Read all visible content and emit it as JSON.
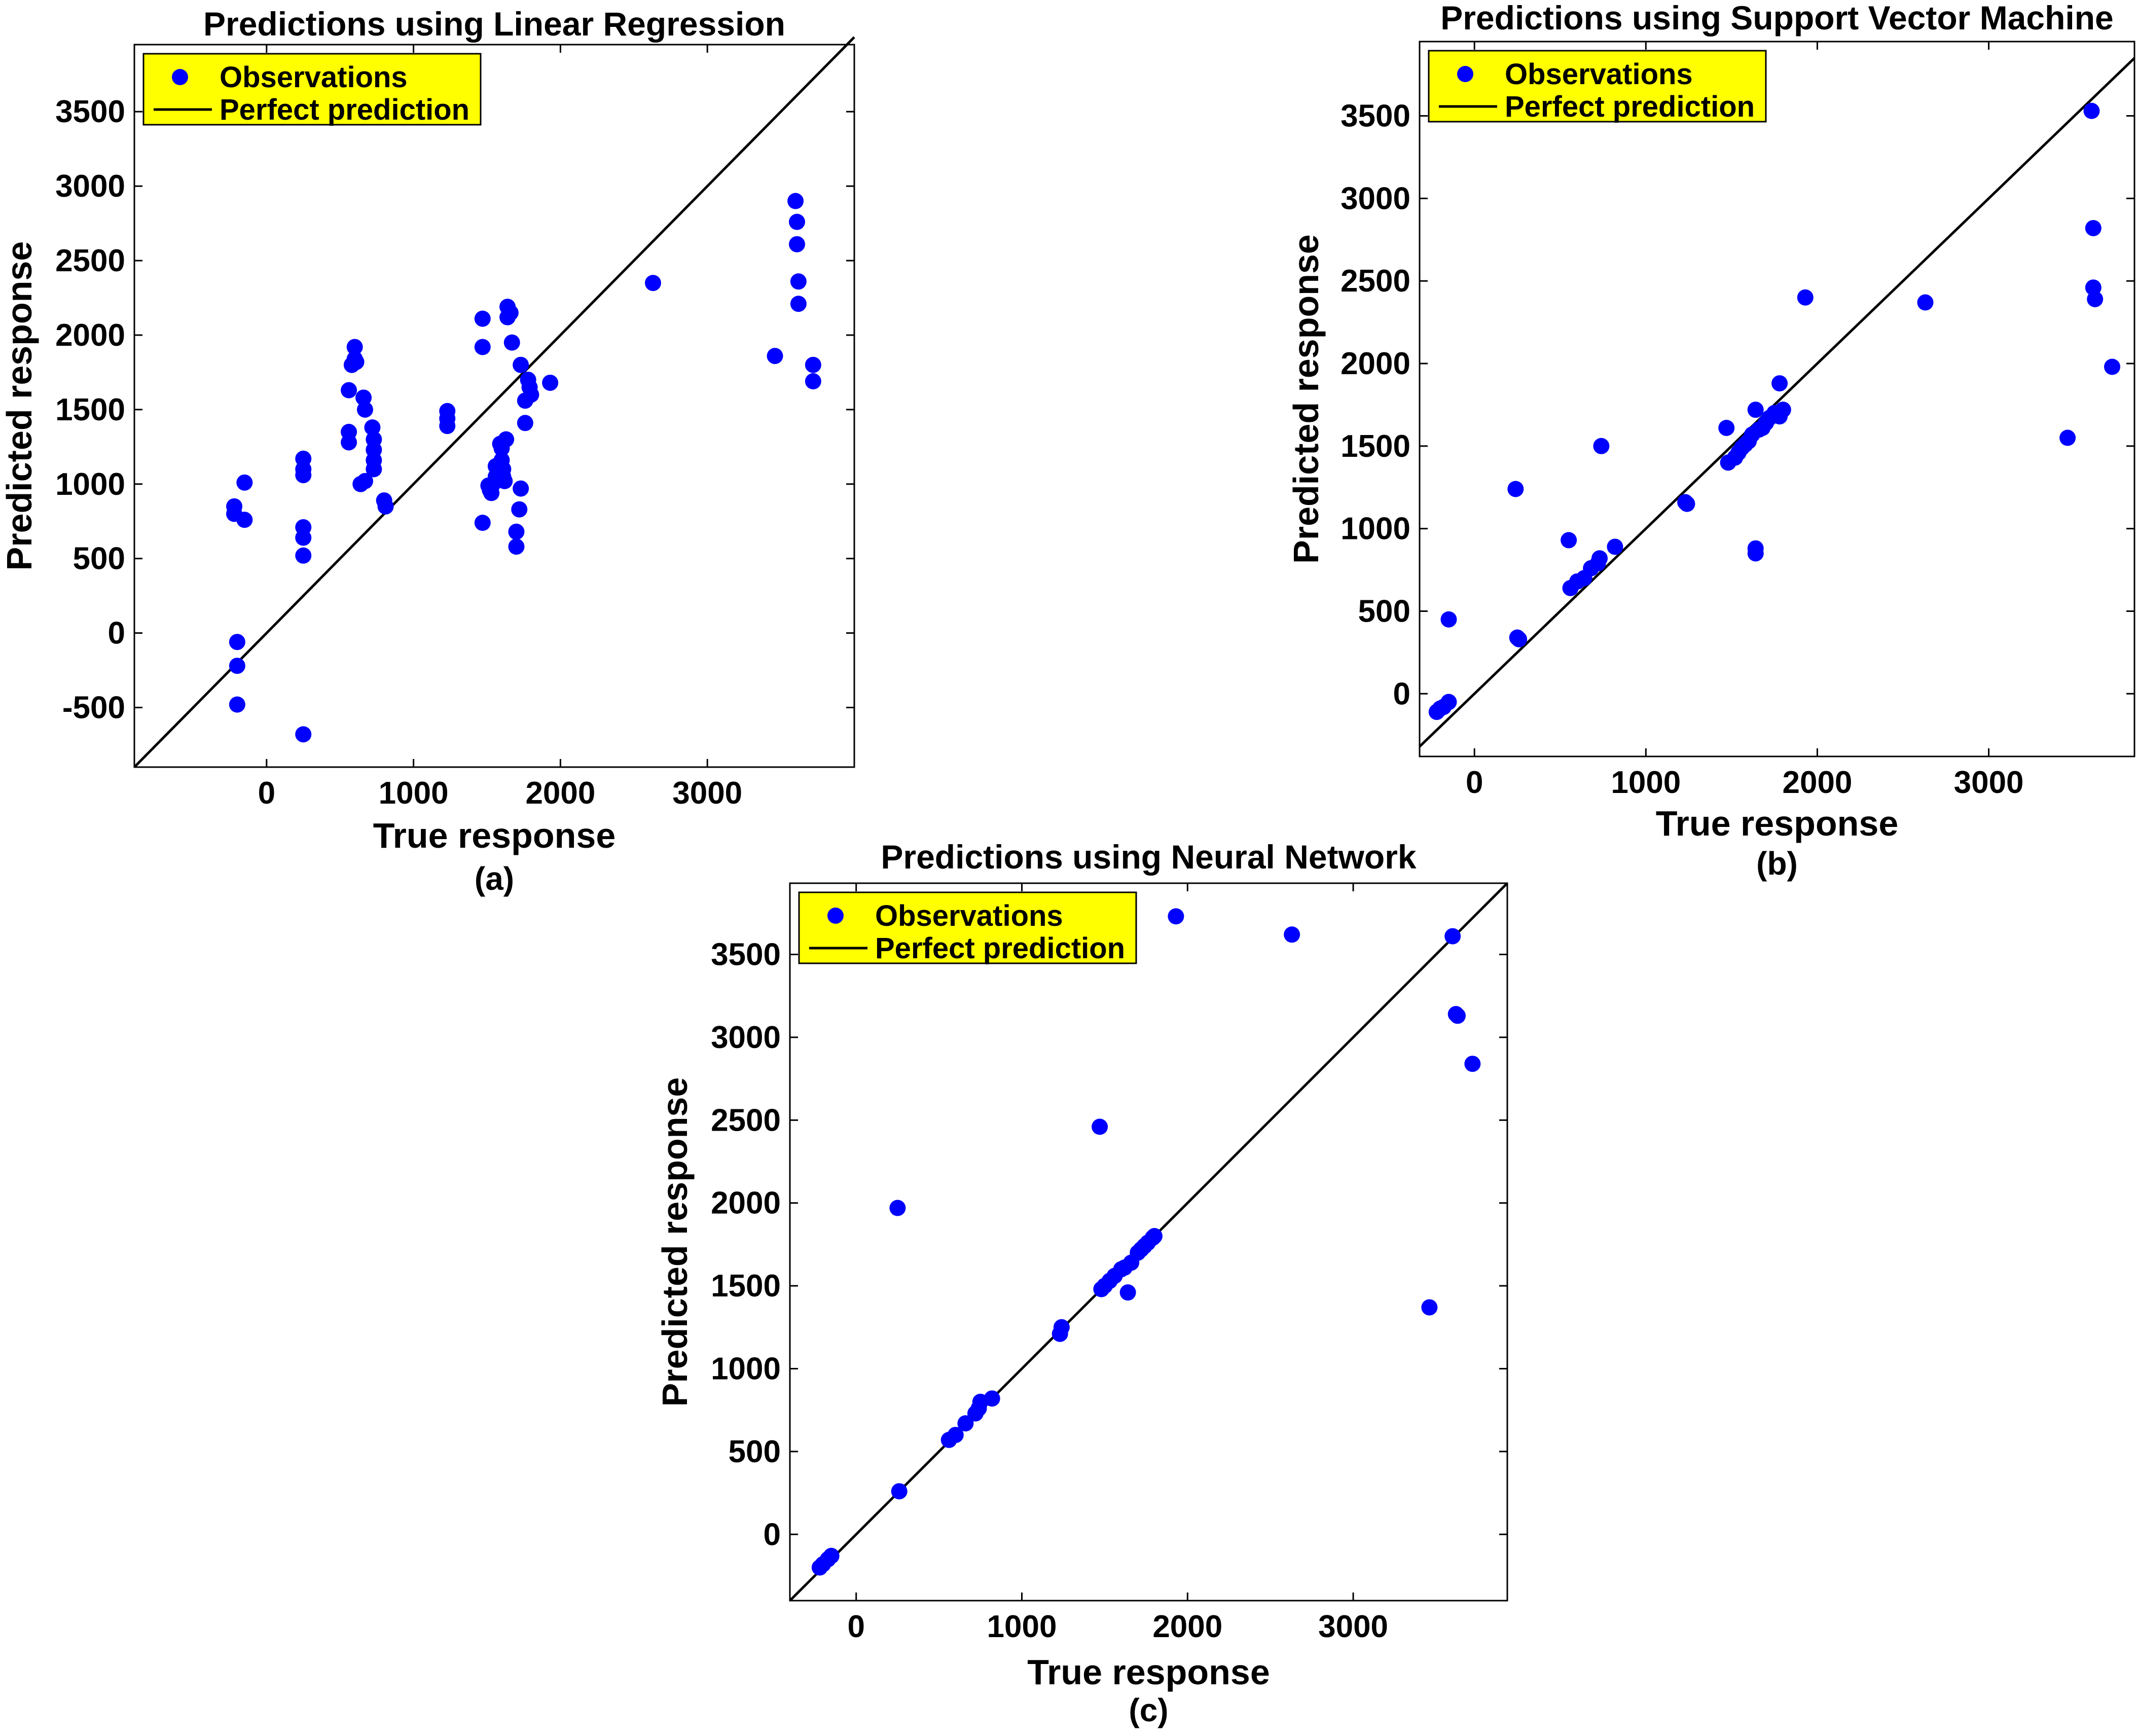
{
  "figure": {
    "caption_prefix": "",
    "background": "#ffffff"
  },
  "chart_data": [
    {
      "id": "a",
      "type": "scatter",
      "title": "Predictions using Linear Regression",
      "xlabel": "True response",
      "ylabel": "Predicted response",
      "caption": "(a)",
      "xlim": [
        -900,
        4000
      ],
      "ylim": [
        -900,
        3950
      ],
      "xticks": [
        0,
        1000,
        2000,
        3000
      ],
      "yticks": [
        -500,
        0,
        500,
        1000,
        1500,
        2000,
        2500,
        3000,
        3500
      ],
      "legend": {
        "position": "top-left",
        "entries": [
          "Observations",
          "Perfect prediction"
        ],
        "background": "#ffff00"
      },
      "reference_line": {
        "name": "Perfect prediction",
        "from": [
          -900,
          -900
        ],
        "to": [
          4000,
          4000
        ],
        "color": "#000000"
      },
      "marker_color": "#0000ff",
      "series": [
        {
          "name": "Observations",
          "x": [
            -220,
            -220,
            -200,
            -200,
            -200,
            -150,
            -150,
            250,
            250,
            250,
            250,
            250,
            250,
            250,
            560,
            560,
            560,
            580,
            600,
            600,
            610,
            640,
            660,
            670,
            670,
            720,
            730,
            730,
            730,
            730,
            800,
            810,
            1230,
            1230,
            1230,
            1470,
            1470,
            1470,
            1510,
            1520,
            1530,
            1540,
            1560,
            1560,
            1590,
            1600,
            1600,
            1610,
            1610,
            1620,
            1630,
            1640,
            1640,
            1660,
            1670,
            1700,
            1700,
            1720,
            1730,
            1730,
            1760,
            1760,
            1780,
            1790,
            1800,
            1930,
            2630,
            3460,
            3600,
            3610,
            3610,
            3620,
            3620,
            3720,
            3720
          ],
          "y": [
            850,
            800,
            -60,
            -220,
            -480,
            1010,
            760,
            1170,
            1100,
            1060,
            710,
            640,
            520,
            -680,
            1350,
            1280,
            1630,
            1800,
            1920,
            1840,
            1820,
            1000,
            1580,
            1500,
            1020,
            1380,
            1300,
            1230,
            1160,
            1100,
            890,
            850,
            1490,
            1440,
            1390,
            2110,
            1920,
            740,
            990,
            960,
            940,
            1000,
            1050,
            1120,
            1270,
            1240,
            1160,
            1100,
            1050,
            1020,
            1300,
            2190,
            2120,
            2150,
            1950,
            680,
            580,
            830,
            970,
            1800,
            1560,
            1410,
            1700,
            1650,
            1600,
            1680,
            2350,
            1860,
            2900,
            2760,
            2610,
            2360,
            2210,
            1800,
            1690
          ]
        }
      ]
    },
    {
      "id": "b",
      "type": "scatter",
      "title": "Predictions using Support Vector  Machine",
      "xlabel": "True response",
      "ylabel": "Predicted response",
      "caption": "(b)",
      "xlim": [
        -320,
        3850
      ],
      "ylim": [
        -380,
        3950
      ],
      "xticks": [
        0,
        1000,
        2000,
        3000
      ],
      "yticks": [
        0,
        500,
        1000,
        1500,
        2000,
        2500,
        3000,
        3500
      ],
      "legend": {
        "position": "top-left",
        "entries": [
          "Observations",
          "Perfect prediction"
        ],
        "background": "#ffff00"
      },
      "reference_line": {
        "name": "Perfect prediction",
        "from": [
          -320,
          -320
        ],
        "to": [
          3850,
          3850
        ],
        "color": "#000000"
      },
      "marker_color": "#0000ff",
      "series": [
        {
          "name": "Observations",
          "x": [
            -220,
            -200,
            -180,
            -150,
            -150,
            240,
            250,
            260,
            550,
            560,
            600,
            640,
            680,
            720,
            730,
            740,
            820,
            1230,
            1240,
            1470,
            1480,
            1520,
            1540,
            1560,
            1580,
            1600,
            1620,
            1640,
            1640,
            1640,
            1660,
            1680,
            1700,
            1720,
            1750,
            1780,
            1780,
            1800,
            1930,
            2630,
            3460,
            3600,
            3610,
            3610,
            3620,
            3720
          ],
          "y": [
            -110,
            -90,
            -80,
            -50,
            450,
            1240,
            340,
            330,
            930,
            640,
            680,
            700,
            760,
            790,
            820,
            1500,
            890,
            1160,
            1150,
            1610,
            1400,
            1430,
            1460,
            1490,
            1510,
            1530,
            1570,
            1720,
            880,
            850,
            1600,
            1610,
            1640,
            1670,
            1700,
            1680,
            1880,
            1720,
            2400,
            2370,
            1550,
            3530,
            2820,
            2460,
            2390,
            1980
          ]
        }
      ]
    },
    {
      "id": "c",
      "type": "scatter",
      "title": "Predictions using Neural Network",
      "xlabel": "True response",
      "ylabel": "Predicted response",
      "caption": "(c)",
      "xlim": [
        -400,
        3930
      ],
      "ylim": [
        -400,
        3930
      ],
      "xticks": [
        0,
        1000,
        2000,
        3000
      ],
      "yticks": [
        0,
        500,
        1000,
        1500,
        2000,
        2500,
        3000,
        3500
      ],
      "legend": {
        "position": "top-left",
        "entries": [
          "Observations",
          "Perfect prediction"
        ],
        "background": "#ffff00"
      },
      "reference_line": {
        "name": "Perfect prediction",
        "from": [
          -400,
          -400
        ],
        "to": [
          3930,
          3930
        ],
        "color": "#000000"
      },
      "marker_color": "#0000ff",
      "series": [
        {
          "name": "Observations",
          "x": [
            -220,
            -200,
            -170,
            -150,
            250,
            260,
            560,
            600,
            660,
            720,
            740,
            750,
            820,
            1230,
            1240,
            1470,
            1480,
            1500,
            1530,
            1560,
            1600,
            1620,
            1640,
            1660,
            1700,
            1720,
            1740,
            1760,
            1790,
            1800,
            1930,
            2630,
            3460,
            3600,
            3620,
            3630,
            3720
          ],
          "y": [
            -200,
            -180,
            -150,
            -130,
            1970,
            260,
            570,
            600,
            670,
            730,
            760,
            800,
            820,
            1210,
            1250,
            2460,
            1480,
            1500,
            1530,
            1560,
            1600,
            1610,
            1460,
            1640,
            1700,
            1720,
            1740,
            1760,
            1790,
            1800,
            3730,
            3620,
            1370,
            3610,
            3140,
            3130,
            2840
          ]
        }
      ]
    }
  ]
}
